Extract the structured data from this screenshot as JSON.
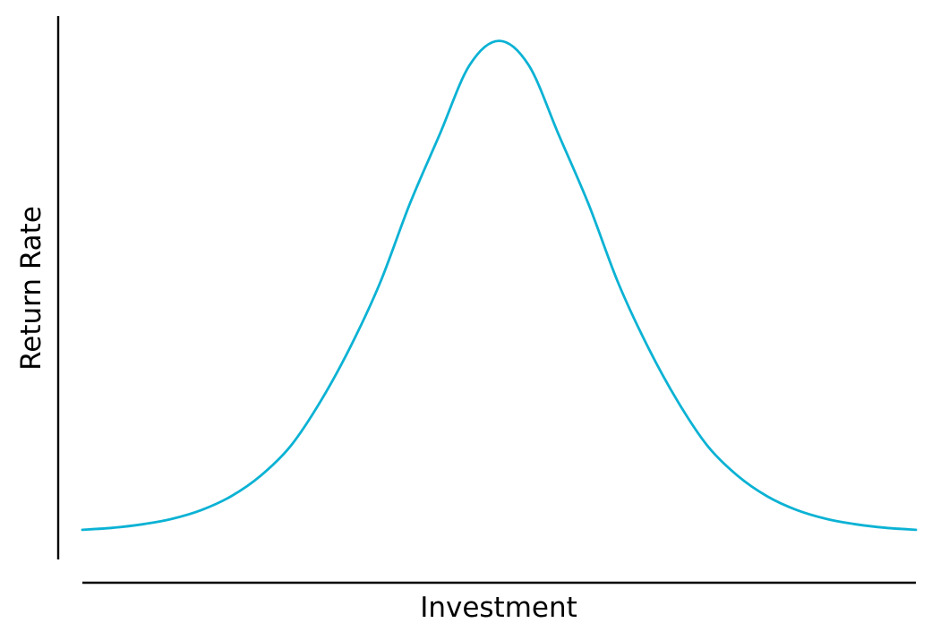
{
  "chart_data": {
    "type": "line",
    "title": "",
    "xlabel": "Investment",
    "ylabel": "Return Rate",
    "xlim": [
      -3.5,
      3.5
    ],
    "ylim": [
      -0.05,
      1.05
    ],
    "grid": false,
    "legend": "none",
    "ticks": "none",
    "series": [
      {
        "color": "#0BB2D4",
        "x": [
          -3.5,
          -3.25,
          -3.0,
          -2.75,
          -2.5,
          -2.25,
          -2.0,
          -1.75,
          -1.5,
          -1.25,
          -1.0,
          -0.75,
          -0.5,
          -0.25,
          0.0,
          0.25,
          0.5,
          0.75,
          1.0,
          1.25,
          1.5,
          1.75,
          2.0,
          2.25,
          2.5,
          2.75,
          3.0,
          3.25,
          3.5
        ],
        "values": [
          0.01,
          0.014,
          0.021,
          0.032,
          0.05,
          0.078,
          0.12,
          0.18,
          0.27,
          0.38,
          0.51,
          0.67,
          0.81,
          0.95,
          1.0,
          0.95,
          0.81,
          0.67,
          0.51,
          0.38,
          0.27,
          0.18,
          0.12,
          0.078,
          0.05,
          0.032,
          0.021,
          0.014,
          0.01
        ]
      }
    ]
  }
}
